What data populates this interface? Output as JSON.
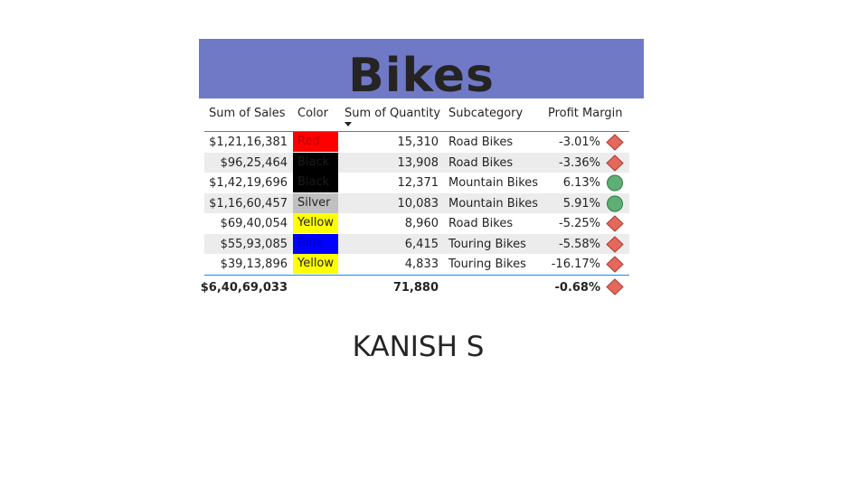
{
  "title": "Bikes",
  "columns": {
    "sales": "Sum of Sales",
    "color": "Color",
    "quantity": "Sum of Quantity",
    "subcategory": "Subcategory",
    "profit_margin": "Profit Margin"
  },
  "rows": [
    {
      "sales": "$1,21,16,381",
      "color": "Red",
      "color_hex": "#ff0000",
      "text_hex": "#c00000",
      "quantity": "15,310",
      "subcategory": "Road Bikes",
      "profit_margin": "-3.01%",
      "indicator": "red-diamond-icon"
    },
    {
      "sales": "$96,25,464",
      "color": "Black",
      "color_hex": "#000000",
      "text_hex": "#1a1a1a",
      "quantity": "13,908",
      "subcategory": "Road Bikes",
      "profit_margin": "-3.36%",
      "indicator": "red-diamond-icon"
    },
    {
      "sales": "$1,42,19,696",
      "color": "Black",
      "color_hex": "#000000",
      "text_hex": "#1a1a1a",
      "quantity": "12,371",
      "subcategory": "Mountain Bikes",
      "profit_margin": "6.13%",
      "indicator": "green-circle-icon"
    },
    {
      "sales": "$1,16,60,457",
      "color": "Silver",
      "color_hex": "#c0c0c0",
      "text_hex": "#252423",
      "quantity": "10,083",
      "subcategory": "Mountain Bikes",
      "profit_margin": "5.91%",
      "indicator": "green-circle-icon"
    },
    {
      "sales": "$69,40,054",
      "color": "Yellow",
      "color_hex": "#ffff00",
      "text_hex": "#252423",
      "quantity": "8,960",
      "subcategory": "Road Bikes",
      "profit_margin": "-5.25%",
      "indicator": "red-diamond-icon"
    },
    {
      "sales": "$55,93,085",
      "color": "Blue",
      "color_hex": "#0000ff",
      "text_hex": "#0000c0",
      "quantity": "6,415",
      "subcategory": "Touring Bikes",
      "profit_margin": "-5.58%",
      "indicator": "red-diamond-icon"
    },
    {
      "sales": "$39,13,896",
      "color": "Yellow",
      "color_hex": "#ffff00",
      "text_hex": "#252423",
      "quantity": "4,833",
      "subcategory": "Touring Bikes",
      "profit_margin": "-16.17%",
      "indicator": "red-diamond-icon"
    }
  ],
  "totals": {
    "sales": "$6,40,69,033",
    "quantity": "71,880",
    "profit_margin": "-0.68%",
    "indicator": "red-diamond-icon"
  },
  "footer_name": "KANISH S",
  "colors": {
    "title_bg": "#7079c6",
    "accent_line": "#118dff",
    "diamond_fill": "#e4685c",
    "circle_fill": "#5fae74"
  }
}
